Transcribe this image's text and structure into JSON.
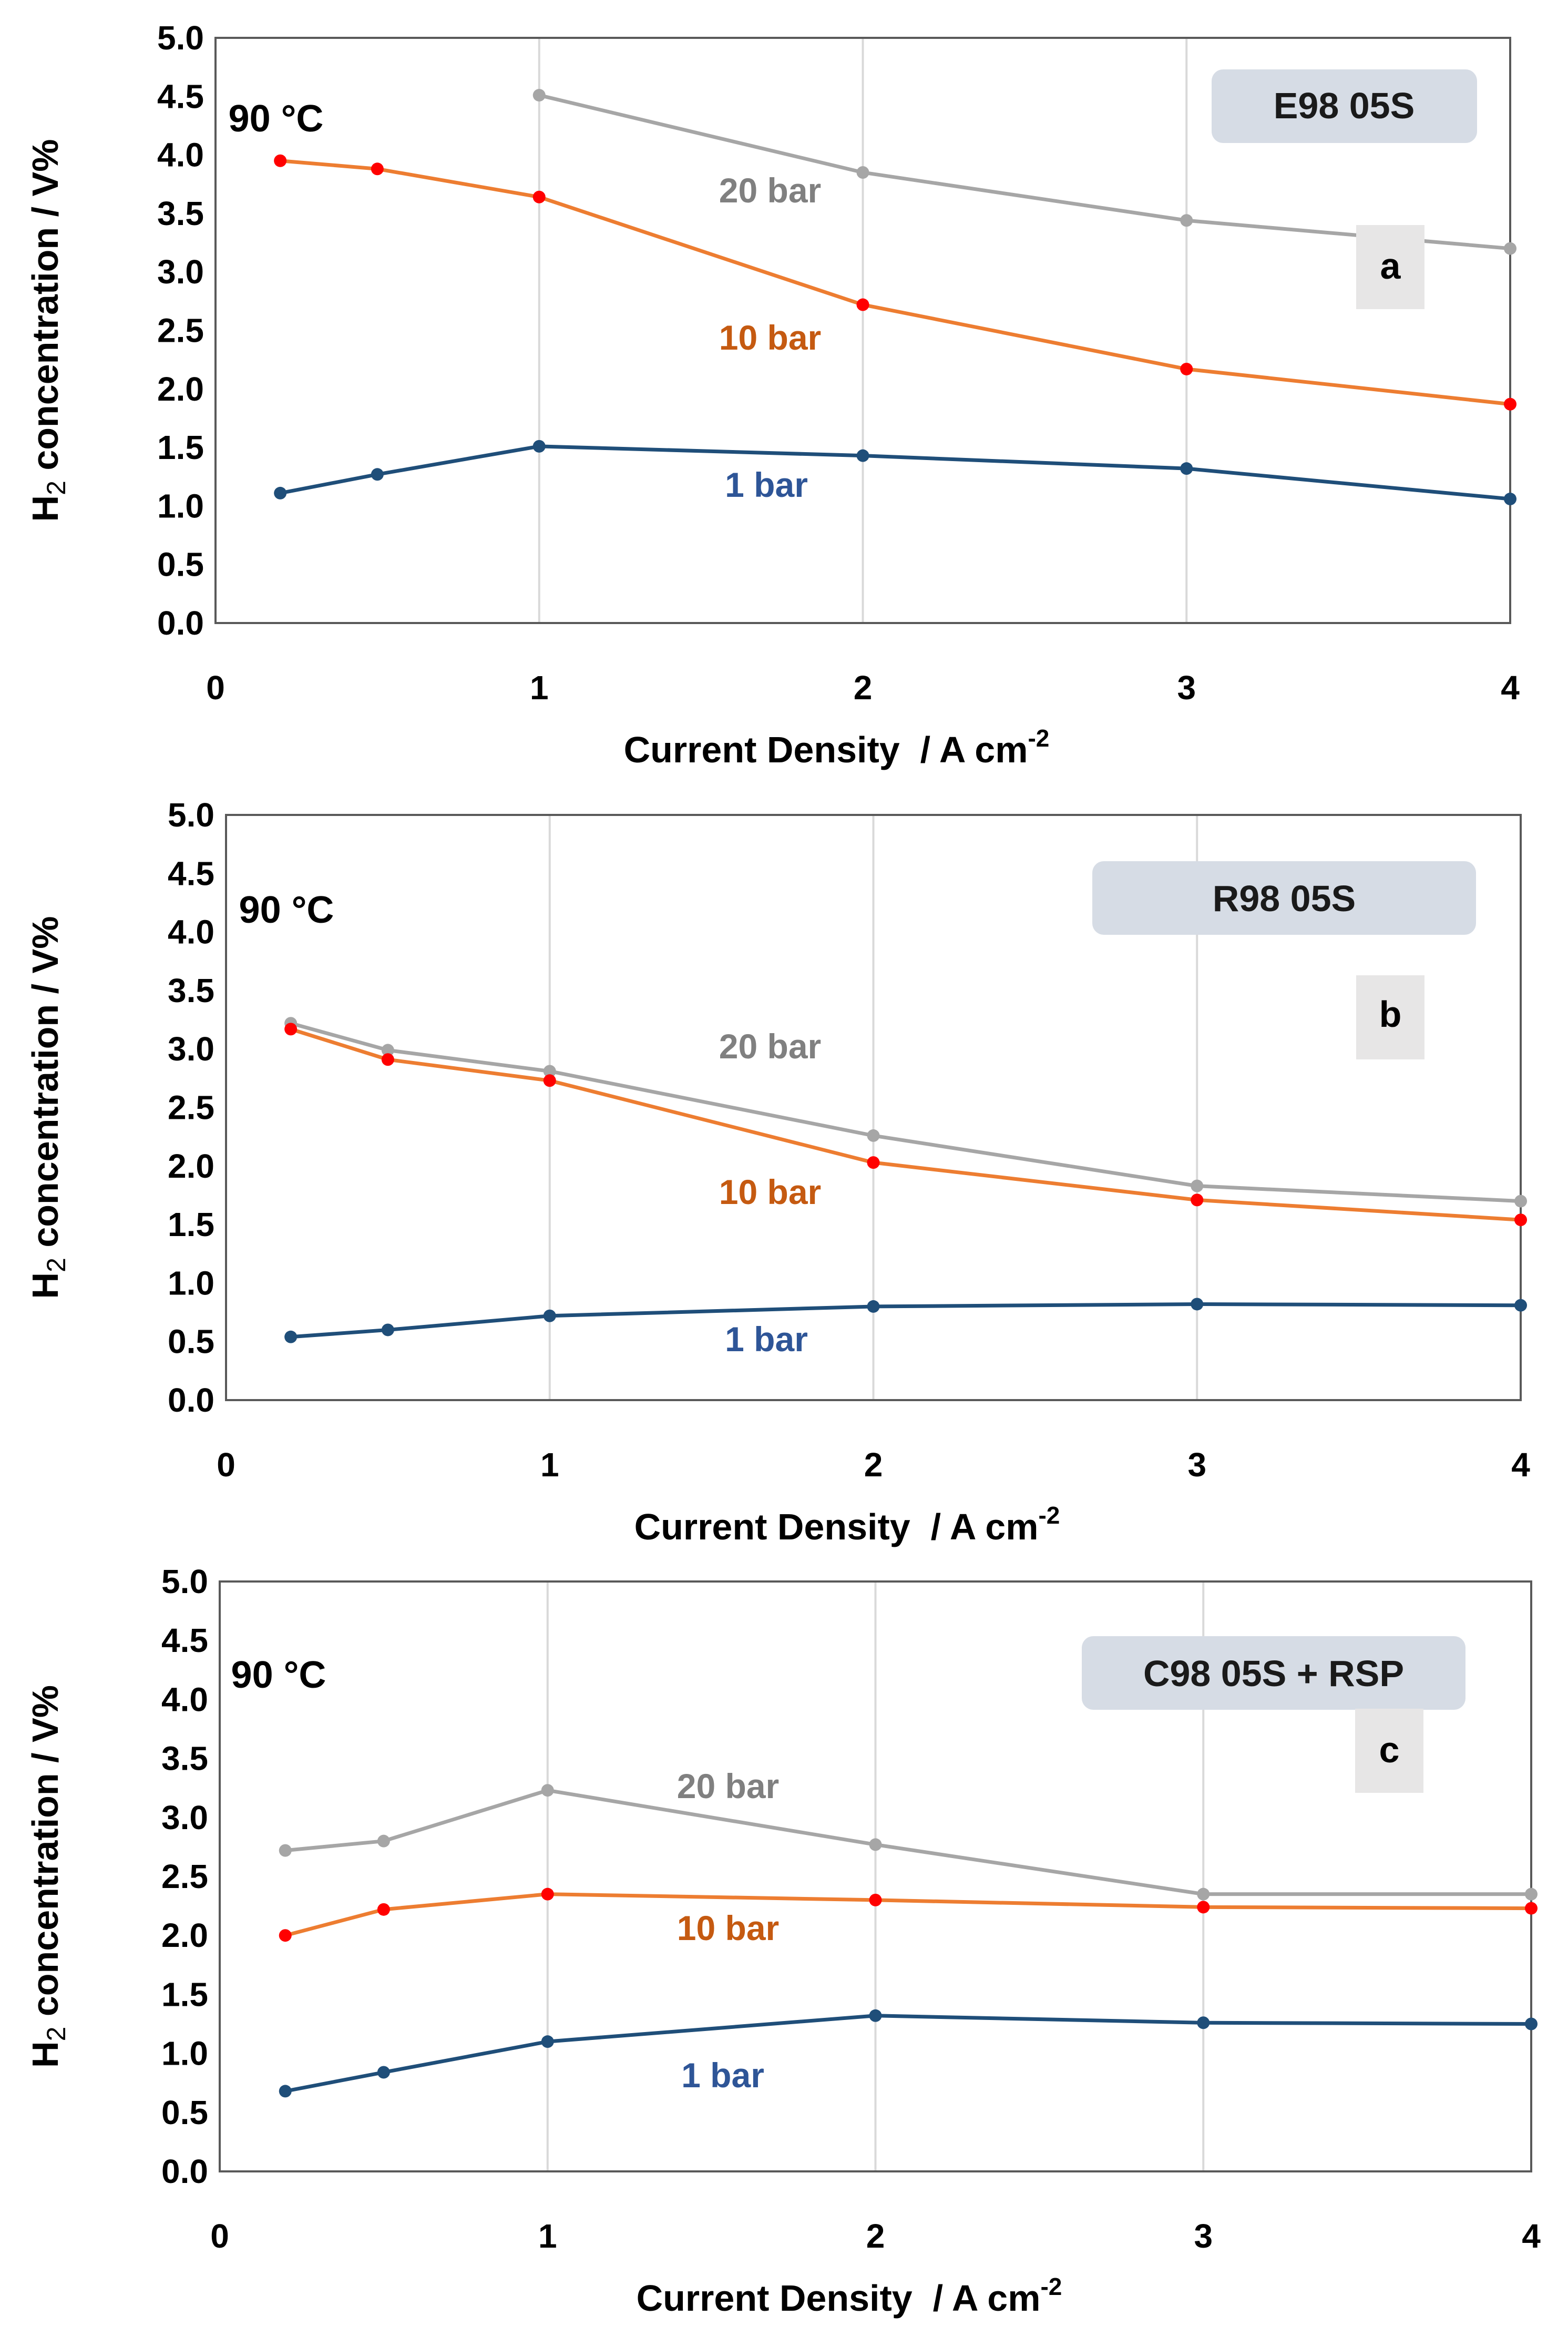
{
  "chart_data": [
    {
      "type": "line",
      "panel_letter": "a",
      "sample_label": "E98 05S",
      "temperature_label": "90 °C",
      "xlabel": "Current Density  / A cm",
      "xlabel_superscript": "-2",
      "ylabel_prefix": "H",
      "ylabel_subscript": "2",
      "ylabel_suffix": " concentration / V%",
      "xlim": [
        0,
        4
      ],
      "ylim": [
        0,
        5
      ],
      "x_ticks": [
        "0",
        "1",
        "2",
        "3",
        "4"
      ],
      "y_ticks": [
        "0.0",
        "0.5",
        "1.0",
        "1.5",
        "2.0",
        "2.5",
        "3.0",
        "3.5",
        "4.0",
        "4.5",
        "5.0"
      ],
      "grid": "vertical",
      "series": [
        {
          "name": "1 bar",
          "color": "#1f4e79",
          "marker_color": "#1f4e79",
          "x": [
            0.2,
            0.5,
            1,
            2,
            3,
            4
          ],
          "y": [
            1.11,
            1.27,
            1.51,
            1.43,
            1.32,
            1.06
          ]
        },
        {
          "name": "10 bar",
          "color": "#ed7d31",
          "marker_color": "#ff0000",
          "x": [
            0.2,
            0.5,
            1,
            2,
            3,
            4
          ],
          "y": [
            3.95,
            3.88,
            3.64,
            2.72,
            2.17,
            1.87
          ]
        },
        {
          "name": "20 bar",
          "color": "#a6a6a6",
          "marker_color": "#a6a6a6",
          "x": [
            1,
            2,
            3,
            4
          ],
          "y": [
            4.51,
            3.85,
            3.44,
            3.2
          ]
        }
      ]
    },
    {
      "type": "line",
      "panel_letter": "b",
      "sample_label": "R98 05S",
      "temperature_label": "90 °C",
      "xlabel": "Current Density  / A cm",
      "xlabel_superscript": "-2",
      "ylabel_prefix": "H",
      "ylabel_subscript": "2",
      "ylabel_suffix": " concentration / V%",
      "xlim": [
        0,
        4
      ],
      "ylim": [
        0,
        5
      ],
      "x_ticks": [
        "0",
        "1",
        "2",
        "3",
        "4"
      ],
      "y_ticks": [
        "0.0",
        "0.5",
        "1.0",
        "1.5",
        "2.0",
        "2.5",
        "3.0",
        "3.5",
        "4.0",
        "4.5",
        "5.0"
      ],
      "grid": "vertical",
      "series": [
        {
          "name": "1 bar",
          "color": "#1f4e79",
          "marker_color": "#1f4e79",
          "x": [
            0.2,
            0.5,
            1,
            2,
            3,
            4
          ],
          "y": [
            0.54,
            0.6,
            0.72,
            0.8,
            0.82,
            0.81
          ]
        },
        {
          "name": "10 bar",
          "color": "#ed7d31",
          "marker_color": "#ff0000",
          "x": [
            0.2,
            0.5,
            1,
            2,
            3,
            4
          ],
          "y": [
            3.17,
            2.91,
            2.73,
            2.03,
            1.71,
            1.54
          ]
        },
        {
          "name": "20 bar",
          "color": "#a6a6a6",
          "marker_color": "#a6a6a6",
          "x": [
            0.2,
            0.5,
            1,
            2,
            3,
            4
          ],
          "y": [
            3.22,
            2.99,
            2.81,
            2.26,
            1.83,
            1.7
          ]
        }
      ]
    },
    {
      "type": "line",
      "panel_letter": "c",
      "sample_label": "C98 05S + RSP",
      "temperature_label": "90 °C",
      "xlabel": "Current Density  / A cm",
      "xlabel_superscript": "-2",
      "ylabel_prefix": "H",
      "ylabel_subscript": "2",
      "ylabel_suffix": " concentration / V%",
      "xlim": [
        0,
        4
      ],
      "ylim": [
        0,
        5
      ],
      "x_ticks": [
        "0",
        "1",
        "2",
        "3",
        "4"
      ],
      "y_ticks": [
        "0.0",
        "0.5",
        "1.0",
        "1.5",
        "2.0",
        "2.5",
        "3.0",
        "3.5",
        "4.0",
        "4.5",
        "5.0"
      ],
      "grid": "vertical",
      "series": [
        {
          "name": "1 bar",
          "color": "#1f4e79",
          "marker_color": "#1f4e79",
          "x": [
            0.2,
            0.5,
            1,
            2,
            3,
            4
          ],
          "y": [
            0.68,
            0.84,
            1.1,
            1.32,
            1.26,
            1.25
          ]
        },
        {
          "name": "10 bar",
          "color": "#ed7d31",
          "marker_color": "#ff0000",
          "x": [
            0.2,
            0.5,
            1,
            2,
            3,
            4
          ],
          "y": [
            2.0,
            2.22,
            2.35,
            2.3,
            2.24,
            2.23
          ]
        },
        {
          "name": "20 bar",
          "color": "#a6a6a6",
          "marker_color": "#a6a6a6",
          "x": [
            0.2,
            0.5,
            1,
            2,
            3,
            4
          ],
          "y": [
            2.72,
            2.8,
            3.23,
            2.77,
            2.35,
            2.35
          ]
        }
      ]
    }
  ],
  "colors": {
    "label_1_bar": "#2e5597",
    "label_10_bar": "#c55a11",
    "label_20_bar": "#808080",
    "sample_badge": "#d6dce5",
    "letter_badge": "#e7e6e6",
    "gridline": "#d9d9d9"
  }
}
